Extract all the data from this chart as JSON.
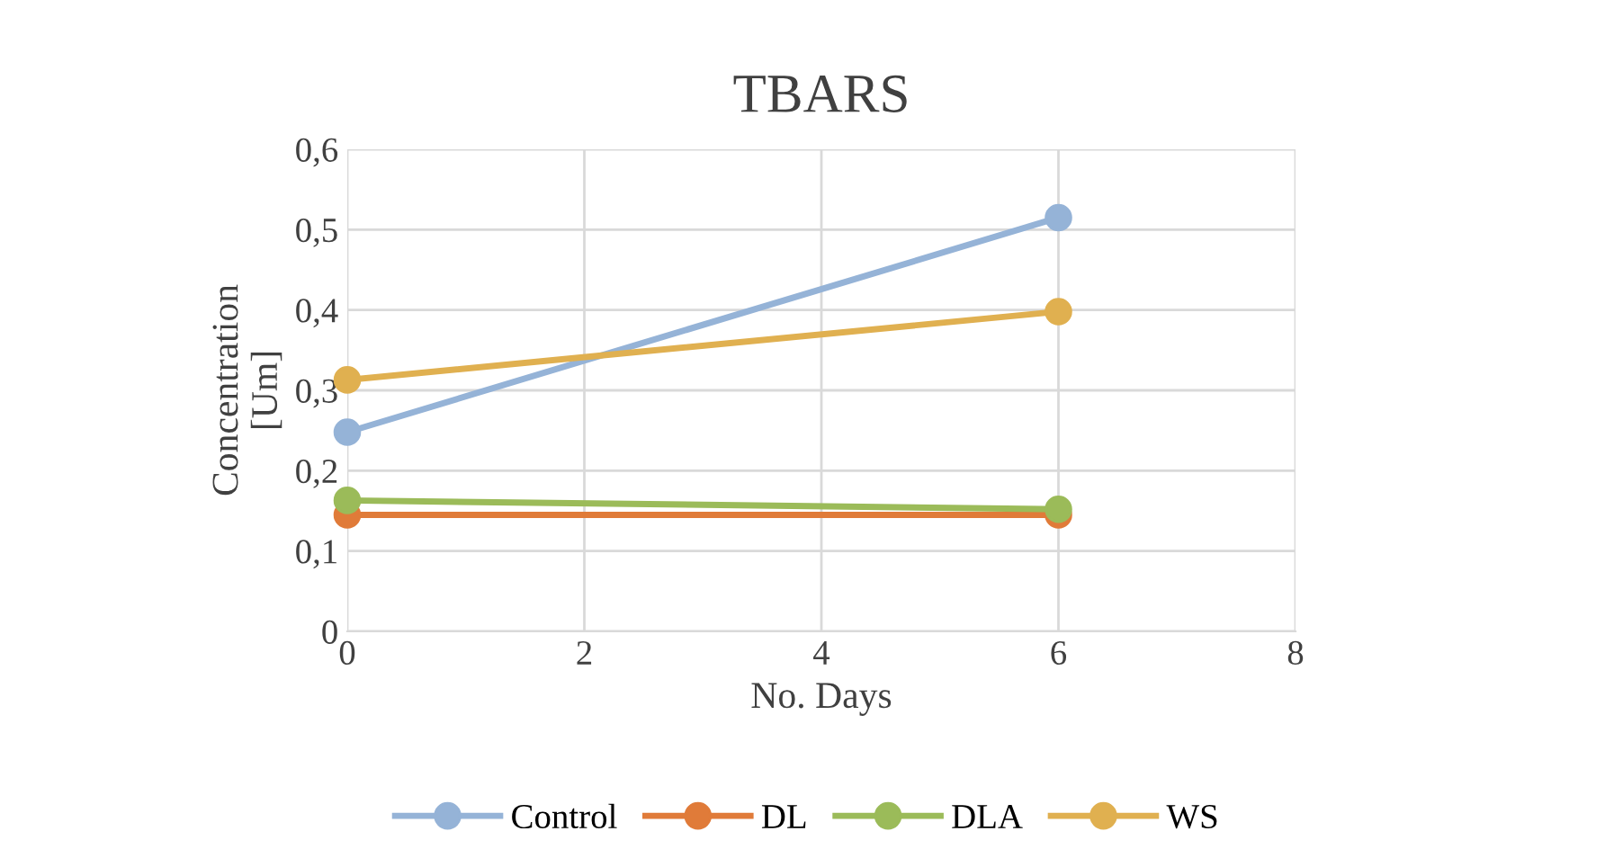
{
  "chart_data": {
    "type": "line",
    "title": "TBARS",
    "xlabel": "No. Days",
    "ylabel": "Concentration\n[Um]",
    "x": [
      0,
      6
    ],
    "series": [
      {
        "name": "Control",
        "color": "#95b3d7",
        "values": [
          0.248,
          0.515
        ]
      },
      {
        "name": "DL",
        "color": "#e07b39",
        "values": [
          0.145,
          0.145
        ]
      },
      {
        "name": "DLA",
        "color": "#9bbb59",
        "values": [
          0.163,
          0.152
        ]
      },
      {
        "name": "WS",
        "color": "#e0b050",
        "values": [
          0.313,
          0.398
        ]
      }
    ],
    "xlim": [
      0,
      8
    ],
    "xticks": [
      0,
      2,
      4,
      6,
      8
    ],
    "ylim": [
      0,
      0.6
    ],
    "yticks": [
      {
        "value": 0,
        "label": "0"
      },
      {
        "value": 0.1,
        "label": "0,1"
      },
      {
        "value": 0.2,
        "label": "0,2"
      },
      {
        "value": 0.3,
        "label": "0,3"
      },
      {
        "value": 0.4,
        "label": "0,4"
      },
      {
        "value": 0.5,
        "label": "0,5"
      },
      {
        "value": 0.6,
        "label": "0,6"
      }
    ],
    "grid": true,
    "legend": "bottom",
    "marker": "circle",
    "line_style": "solid"
  }
}
